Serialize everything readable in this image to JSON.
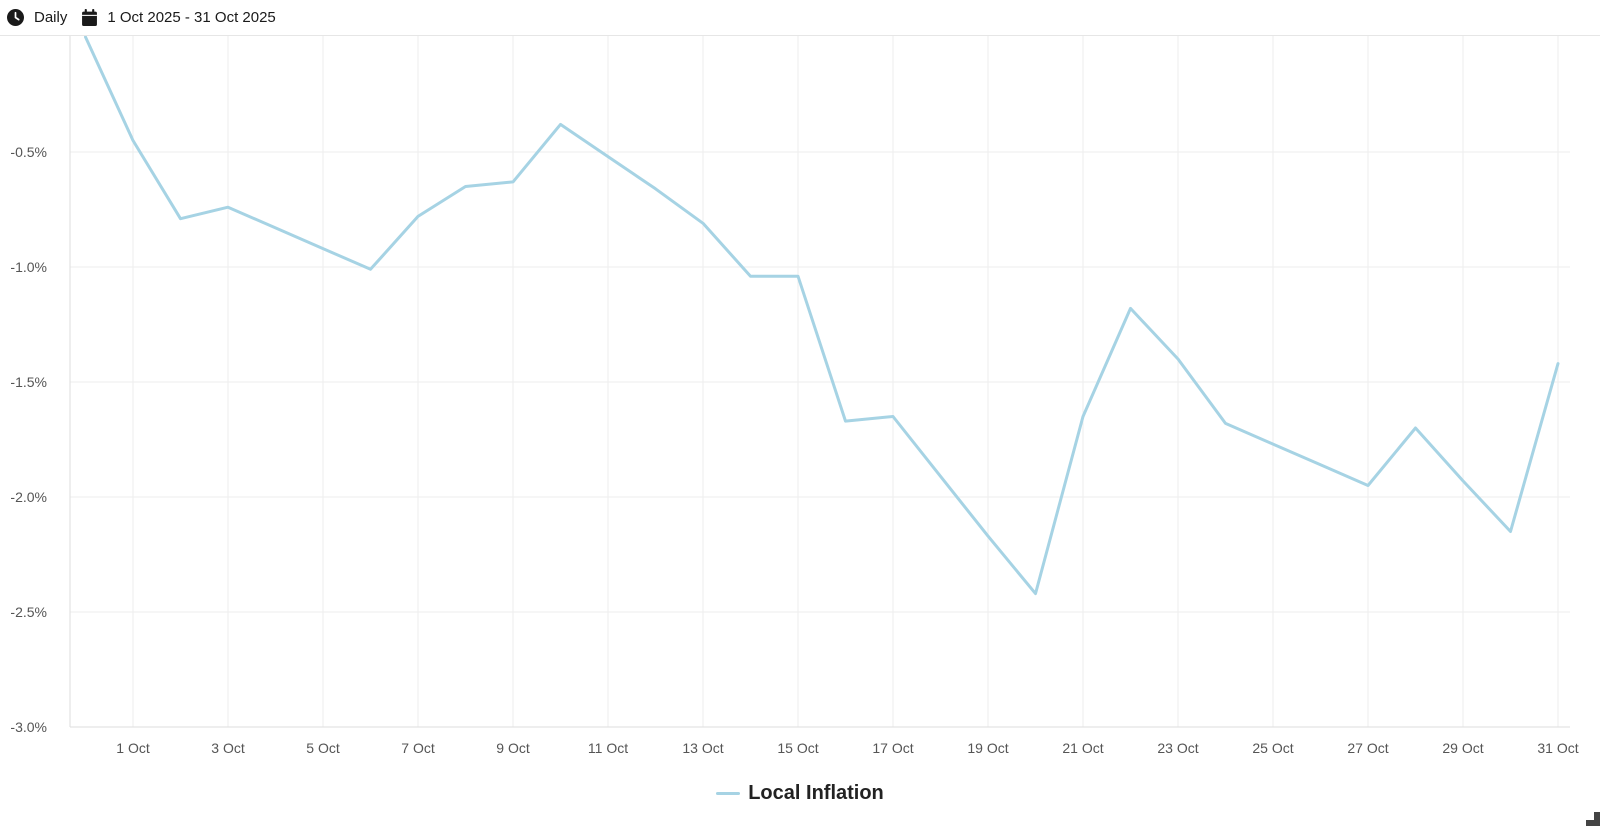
{
  "toolbar": {
    "interval_label": "Daily",
    "date_range_label": "1 Oct 2025 - 31 Oct 2025"
  },
  "icons": {
    "interval": "clock-icon",
    "date_range": "calendar-icon",
    "resize": "resize-handle-icon"
  },
  "colors": {
    "series_line": "#a6d3e4",
    "grid": "#eeeeee",
    "text": "#555555"
  },
  "chart_data": {
    "type": "line",
    "title": "",
    "xlabel": "",
    "ylabel": "",
    "grid": true,
    "legend_position": "bottom",
    "x_tick_labels": [
      "1 Oct",
      "3 Oct",
      "5 Oct",
      "7 Oct",
      "9 Oct",
      "11 Oct",
      "13 Oct",
      "15 Oct",
      "17 Oct",
      "19 Oct",
      "21 Oct",
      "23 Oct",
      "25 Oct",
      "27 Oct",
      "29 Oct",
      "31 Oct"
    ],
    "y_tick_labels": [
      "-0.5%",
      "-1.0%",
      "-1.5%",
      "-2.0%",
      "-2.5%",
      "-3.0%"
    ],
    "ylim": [
      -3.0,
      0.0
    ],
    "series": [
      {
        "name": "Local Inflation",
        "x": [
          "30 Sep",
          "1 Oct",
          "2 Oct",
          "3 Oct",
          "4 Oct",
          "5 Oct",
          "6 Oct",
          "7 Oct",
          "8 Oct",
          "9 Oct",
          "10 Oct",
          "11 Oct",
          "12 Oct",
          "13 Oct",
          "14 Oct",
          "15 Oct",
          "16 Oct",
          "17 Oct",
          "18 Oct",
          "19 Oct",
          "20 Oct",
          "21 Oct",
          "22 Oct",
          "23 Oct",
          "24 Oct",
          "25 Oct",
          "26 Oct",
          "27 Oct",
          "28 Oct",
          "29 Oct",
          "30 Oct",
          "31 Oct"
        ],
        "values": [
          0.0,
          -0.45,
          -0.79,
          -0.74,
          -0.83,
          -0.92,
          -1.01,
          -0.78,
          -0.65,
          -0.63,
          -0.38,
          -0.52,
          -0.66,
          -0.81,
          -1.04,
          -1.04,
          -1.67,
          -1.65,
          -1.91,
          -2.17,
          -2.42,
          -1.65,
          -1.18,
          -1.4,
          -1.68,
          -1.77,
          -1.86,
          -1.95,
          -1.7,
          -1.93,
          -2.15,
          -1.42
        ]
      }
    ]
  }
}
